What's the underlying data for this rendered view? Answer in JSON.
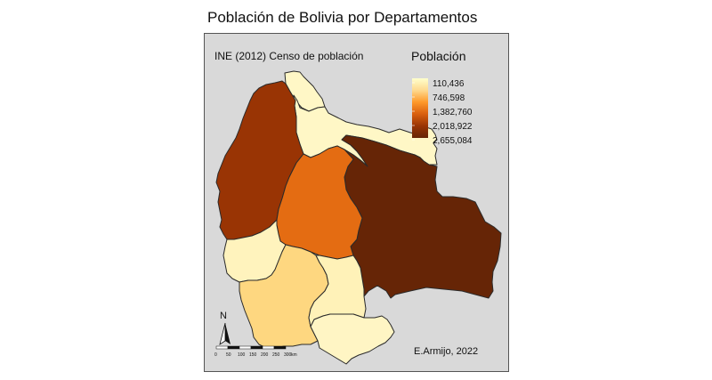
{
  "map": {
    "title": "Población de Bolivia por Departamentos",
    "source_note": "INE (2012) Censo de población",
    "credit": "E.Armijo, 2022",
    "panel_background": "#d9d9d9",
    "border_color": "#2a2a2a"
  },
  "legend": {
    "title": "Población",
    "labels": [
      "110,436",
      "746,598",
      "1,382,760",
      "2,018,922",
      "2,655,084"
    ],
    "gradient_colors": [
      "#ffffcc",
      "#fed98e",
      "#fe9929",
      "#d95f0e",
      "#993404",
      "#662506"
    ]
  },
  "north_arrow": {
    "label": "N"
  },
  "scale_bar": {
    "ticks": [
      "0",
      "50",
      "100",
      "150",
      "200",
      "250",
      "300"
    ],
    "unit": "km"
  },
  "departments": [
    {
      "id": "pando",
      "fill": "#fff7c6"
    },
    {
      "id": "beni",
      "fill": "#fff7c6"
    },
    {
      "id": "la-paz",
      "fill": "#993404"
    },
    {
      "id": "cochabamba",
      "fill": "#e46c12"
    },
    {
      "id": "santa-cruz",
      "fill": "#662506"
    },
    {
      "id": "oruro",
      "fill": "#fff3bd"
    },
    {
      "id": "potosi",
      "fill": "#fed780"
    },
    {
      "id": "chuquisaca",
      "fill": "#fff2b8"
    },
    {
      "id": "tarija",
      "fill": "#fff5c4"
    }
  ]
}
